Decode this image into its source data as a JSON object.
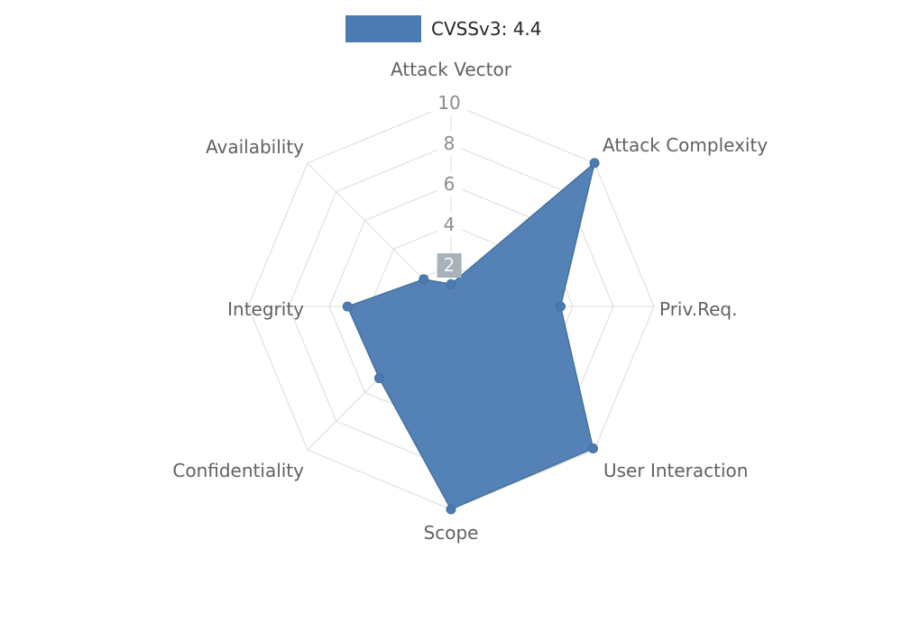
{
  "chart_data": {
    "type": "radar",
    "title": "CVSSv3: 4.4",
    "legend": {
      "label": "CVSSv3: 4.4",
      "swatch_color": "#4b7bb2"
    },
    "axes": [
      "Attack Vector",
      "Attack Complexity",
      "Priv.Req.",
      "User Interaction",
      "Scope",
      "Confidentiality",
      "Integrity",
      "Availability"
    ],
    "series": [
      {
        "name": "CVSSv3: 4.4",
        "values": [
          1.1,
          10,
          5.4,
          9.9,
          10,
          5.0,
          5.1,
          1.9
        ]
      }
    ],
    "radial_range": [
      0,
      10
    ],
    "ticks": [
      {
        "label": "10"
      },
      {
        "label": "8"
      },
      {
        "label": "6"
      },
      {
        "label": "4"
      },
      {
        "label": "2",
        "bg": "#a9b1ba",
        "fg": "#f2f4f7"
      }
    ],
    "grid": "spider-web",
    "legend_position": "top-center",
    "colors": {
      "fill": "#4b7bb2",
      "stroke": "#44719f",
      "grid": "#dcdcdc"
    }
  }
}
